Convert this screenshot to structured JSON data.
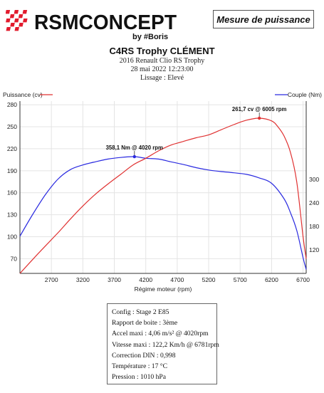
{
  "logo": {
    "brand": "RSMCONCEPT",
    "byline": "by #Boris"
  },
  "badge": {
    "label": "Mesure de puissance"
  },
  "header": {
    "title": "C4RS Trophy CLÉMENT",
    "vehicle": "2016 Renault Clio RS Trophy",
    "datetime": "28 mai 2022 12:23:00",
    "smoothing": "Lissage : Elevé"
  },
  "colors": {
    "power": "#e03131",
    "torque": "#2a2ae0",
    "logo_red": "#e21b2d"
  },
  "chart_data": {
    "type": "line",
    "xlabel": "Régime moteur (rpm)",
    "x_ticks": [
      2700,
      3200,
      3700,
      4200,
      4700,
      5200,
      5700,
      6200,
      6700
    ],
    "xlim": [
      2200,
      6750
    ],
    "grid": true,
    "series": [
      {
        "name": "Puissance (cv)",
        "axis": "left",
        "ylim": [
          50,
          285
        ],
        "y_ticks": [
          70,
          100,
          130,
          160,
          190,
          220,
          250,
          280
        ],
        "x": [
          2200,
          2500,
          2800,
          3000,
          3200,
          3400,
          3600,
          3800,
          4000,
          4200,
          4400,
          4600,
          4800,
          5000,
          5200,
          5400,
          5600,
          5800,
          6005,
          6200,
          6300,
          6400,
          6500,
          6600,
          6700,
          6750
        ],
        "y": [
          50,
          78,
          105,
          124,
          142,
          158,
          172,
          185,
          198,
          207,
          217,
          225,
          230,
          235,
          239,
          246,
          253,
          259,
          261.7,
          258,
          250,
          237,
          215,
          175,
          100,
          70
        ],
        "peak_label": "261,7 cv @ 6005 rpm",
        "peak": [
          6005,
          261.7
        ]
      },
      {
        "name": "Couple (Nm)",
        "axis": "right",
        "ylim": [
          60,
          500
        ],
        "y_ticks": [
          120,
          180,
          240,
          300
        ],
        "x": [
          2200,
          2400,
          2600,
          2800,
          3000,
          3200,
          3400,
          3600,
          3800,
          4020,
          4200,
          4400,
          4600,
          4800,
          5000,
          5200,
          5400,
          5600,
          5800,
          6000,
          6200,
          6400,
          6500,
          6600,
          6700,
          6750
        ],
        "y": [
          155,
          210,
          260,
          300,
          325,
          337,
          345,
          352,
          356,
          358.1,
          354,
          352,
          345,
          338,
          330,
          324,
          320,
          317,
          313,
          304,
          290,
          250,
          215,
          170,
          100,
          70
        ],
        "peak_label": "358,1 Nm @ 4020 rpm",
        "peak": [
          4020,
          358.1
        ]
      }
    ]
  },
  "info": {
    "config": "Config : Stage 2 E85",
    "gear": "Rapport de boite : 3ème",
    "accel": "Accel maxi : 4,06 m/s² @ 4020rpm",
    "speed": "Vitesse maxi : 122,2 Km/h @ 6781rpm",
    "din": "Correction DIN : 0,998",
    "temp": "Température : 17 °C",
    "pressure": "Pression : 1010 hPa"
  }
}
